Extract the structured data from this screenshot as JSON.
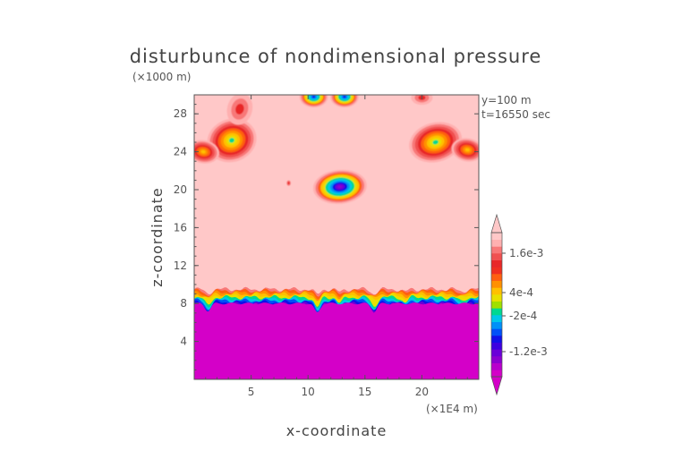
{
  "chart_data": {
    "type": "heatmap",
    "title": "disturbunce of nondimensional pressure",
    "xlabel": "x-coordinate",
    "ylabel": "z-coordinate",
    "x_units": "(×1E4 m)",
    "y_units": "(×1000 m)",
    "info": [
      "y=100 m",
      "t=16550 sec"
    ],
    "xlim": [
      0,
      25
    ],
    "ylim": [
      0,
      30
    ],
    "x_ticks": [
      5,
      10,
      15,
      20
    ],
    "y_ticks": [
      4,
      8,
      12,
      16,
      20,
      24,
      28
    ],
    "colorbar": {
      "labels": [
        {
          "value": "1.6e-3"
        },
        {
          "value": "4e-4"
        },
        {
          "value": "-2e-4"
        },
        {
          "value": "-1.2e-3"
        }
      ],
      "colors": [
        "#d400c8",
        "#b800cc",
        "#8c00d0",
        "#6a00d8",
        "#3c00e0",
        "#1010e8",
        "#0050f8",
        "#0090f8",
        "#00c8e8",
        "#00d890",
        "#a0e000",
        "#e8e000",
        "#ffc000",
        "#ff9000",
        "#ff6010",
        "#f03020",
        "#e82828",
        "#f05050",
        "#f87878",
        "#ffb0b0",
        "#ffc8c8"
      ]
    },
    "field": {
      "background_level": "max",
      "lower_layer_top_z": 9.5,
      "minimum_region": "below z≈8 (magenta)",
      "features": [
        {
          "kind": "minimum",
          "center": [
            12.8,
            20.3
          ]
        },
        {
          "kind": "minimum",
          "center": [
            10.5,
            29.8
          ]
        },
        {
          "kind": "minimum",
          "center": [
            13.2,
            29.8
          ]
        },
        {
          "kind": "maximum",
          "center": [
            3.3,
            25.2
          ]
        },
        {
          "kind": "maximum",
          "center": [
            21.2,
            25.0
          ]
        },
        {
          "kind": "maximum",
          "center": [
            0.8,
            24.0
          ]
        },
        {
          "kind": "maximum",
          "center": [
            24.0,
            24.2
          ]
        }
      ]
    }
  }
}
